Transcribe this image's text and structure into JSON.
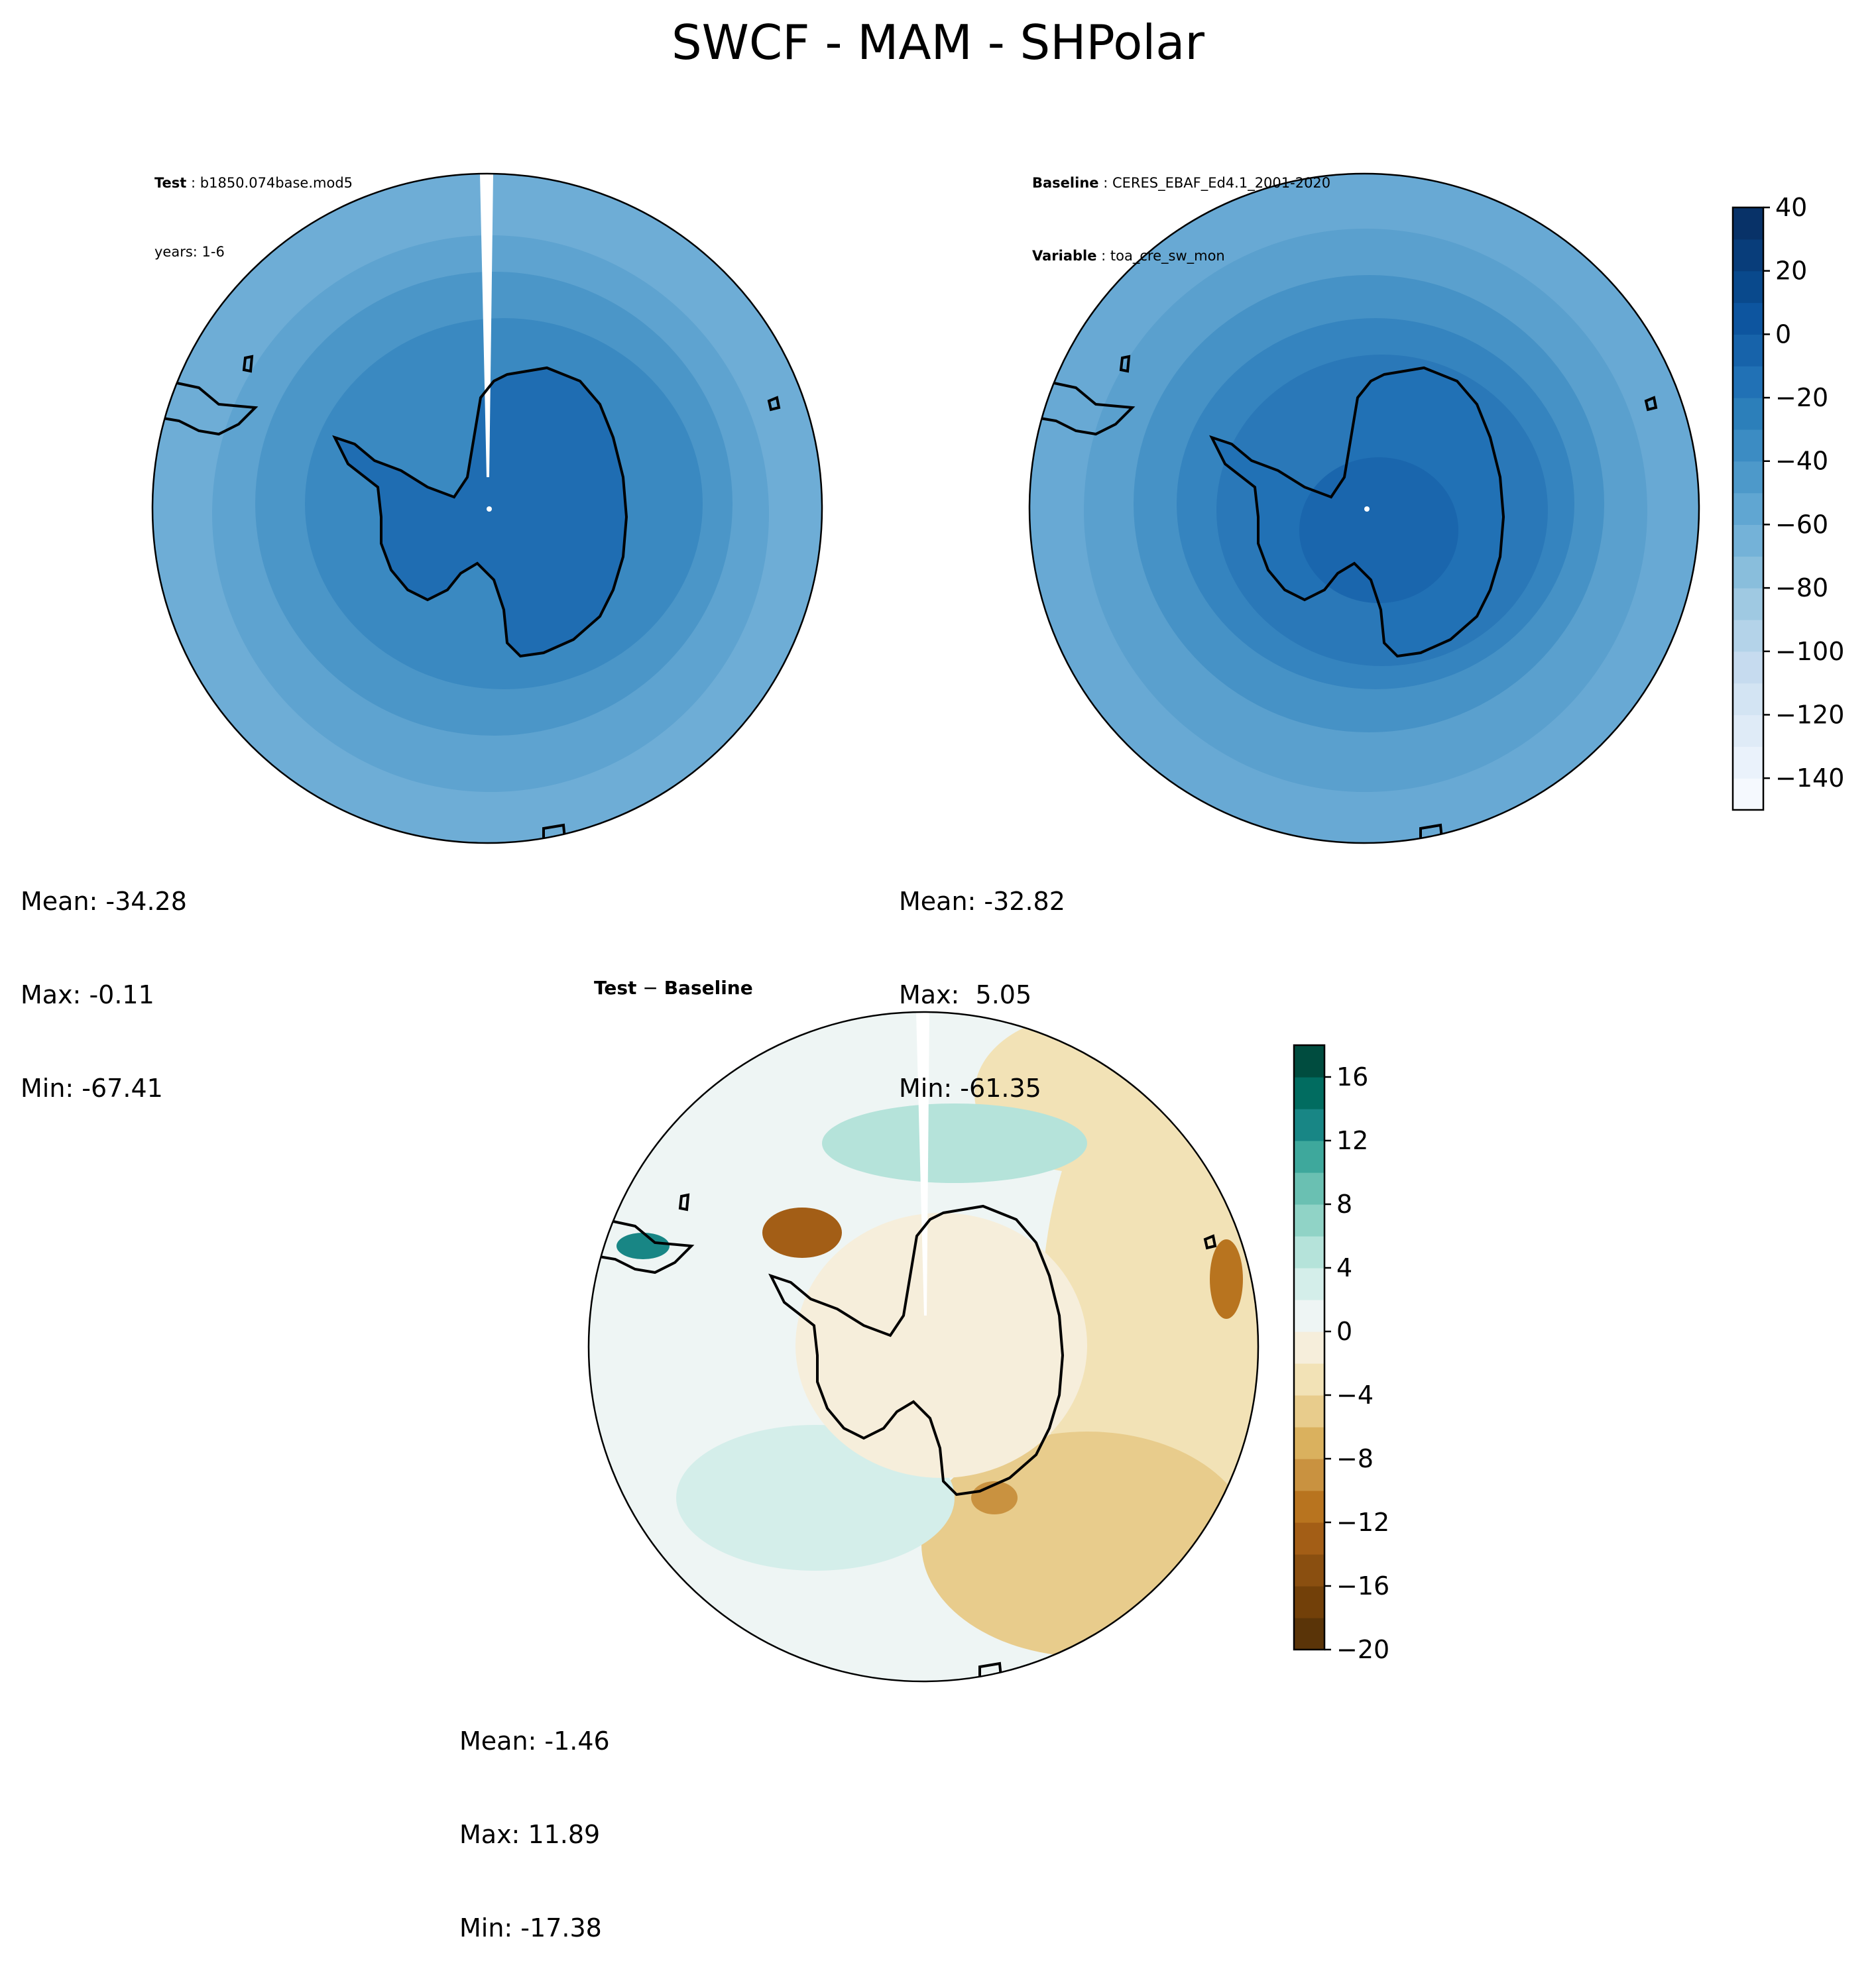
{
  "title": "SWCF - MAM - SHPolar",
  "test_panel": {
    "name_label": "Test",
    "name_value": "b1850.074base.mod5",
    "years_text": "years: 1-6",
    "stats": {
      "mean": "Mean: -34.28",
      "max": "Max: -0.11",
      "min": "Min: -67.41"
    }
  },
  "baseline_panel": {
    "name_label": "Baseline",
    "name_value": "CERES_EBAF_Ed4.1_2001-2020",
    "var_label": "Variable",
    "var_value": "toa_cre_sw_mon",
    "stats": {
      "mean": "Mean: -32.82",
      "max": "Max:  5.05",
      "min": "Min: -61.35"
    }
  },
  "diff_panel": {
    "title_left": "Test",
    "title_sep": "−",
    "title_right": "Baseline",
    "stats": {
      "mean": "Mean: -1.46",
      "max": "Max: 11.89",
      "min": "Min: -17.38"
    }
  },
  "colorbars": {
    "main": {
      "ticks": [
        "40",
        "20",
        "0",
        "−20",
        "−40",
        "−60",
        "−80",
        "−100",
        "−120",
        "−140"
      ],
      "range": [
        -150,
        40
      ],
      "colors": [
        "#f5f9fe",
        "#eaf2fb",
        "#dfebf7",
        "#d3e4f3",
        "#c6dbef",
        "#b4d3e9",
        "#9fc9e2",
        "#89bedc",
        "#74b2d8",
        "#60a6d2",
        "#4d99ca",
        "#3c8cc3",
        "#2c7fba",
        "#2171b5",
        "#1763aa",
        "#0d559f",
        "#09498c",
        "#083d7a",
        "#083268"
      ]
    },
    "diff": {
      "ticks": [
        "16",
        "12",
        "8",
        "4",
        "0",
        "−4",
        "−8",
        "−12",
        "−16",
        "−20"
      ],
      "range": [
        -20,
        18
      ],
      "colors": [
        "#5a3408",
        "#724009",
        "#8a4f10",
        "#a35e16",
        "#b8741f",
        "#c99240",
        "#dab15e",
        "#e8cc8c",
        "#f2e2b6",
        "#f6eedb",
        "#eef5f4",
        "#d4eeea",
        "#b5e3da",
        "#90d3c6",
        "#6ac0b2",
        "#3ea89c",
        "#188685",
        "#016c60",
        "#004c3f"
      ]
    }
  },
  "map_colors": {
    "ocean_light": "#74b2d8",
    "ocean_mid": "#60a6d2",
    "ring_inner": "#4d99ca",
    "ring_deep": "#3c8cc3",
    "ice_test": "#1f6db2",
    "ice_base": "#2171b5",
    "ice_base_core": "#1763aa",
    "diff_base": "#eef5f4",
    "diff_neutral": "#f6eedb",
    "diff_brown": "#dab15e",
    "diff_brown_dark": "#a35e16",
    "diff_teal": "#90d3c6",
    "diff_teal_dark": "#188685"
  }
}
